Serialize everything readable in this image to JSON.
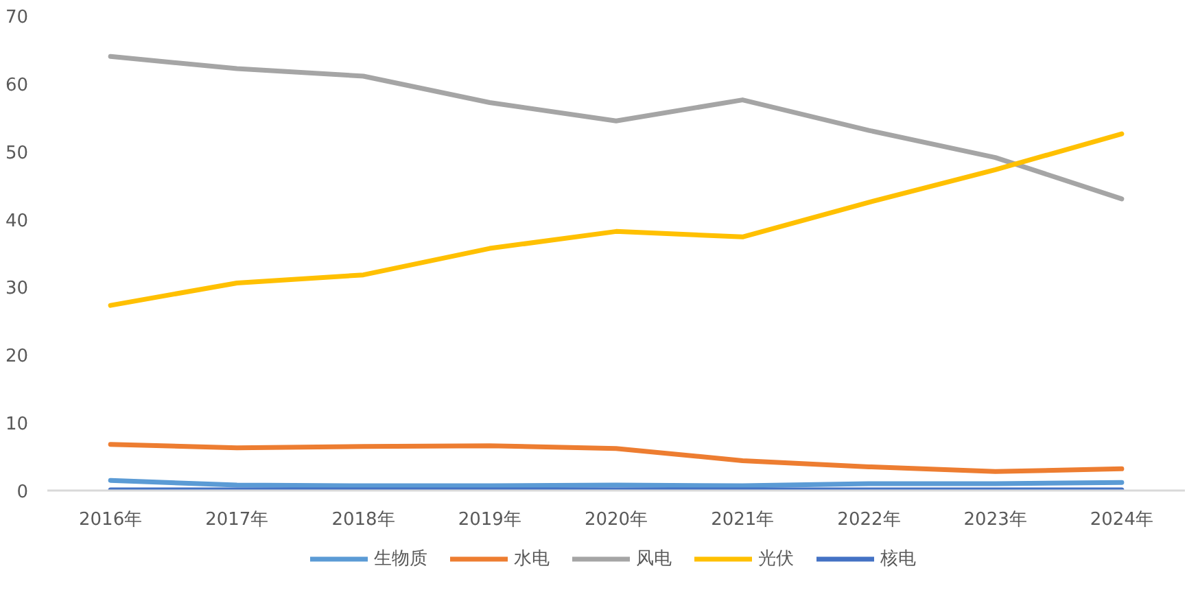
{
  "chart_data": {
    "type": "line",
    "categories": [
      "2016年",
      "2017年",
      "2018年",
      "2019年",
      "2020年",
      "2021年",
      "2022年",
      "2023年",
      "2024年"
    ],
    "series": [
      {
        "name": "生物质",
        "color": "#5b9bd5",
        "values": [
          1.5,
          0.8,
          0.7,
          0.7,
          0.8,
          0.7,
          1.0,
          1.0,
          1.2
        ]
      },
      {
        "name": "水电",
        "color": "#ed7d31",
        "values": [
          6.8,
          6.3,
          6.5,
          6.6,
          6.2,
          4.4,
          3.5,
          2.8,
          3.2
        ]
      },
      {
        "name": "风电",
        "color": "#a5a5a5",
        "values": [
          64.0,
          62.2,
          61.1,
          57.2,
          54.5,
          57.6,
          53.1,
          49.1,
          43.0
        ]
      },
      {
        "name": "光伏",
        "color": "#ffc000",
        "values": [
          27.3,
          30.6,
          31.8,
          35.7,
          38.2,
          37.4,
          42.5,
          47.3,
          52.6
        ]
      },
      {
        "name": "核电",
        "color": "#4472c4",
        "values": [
          0.1,
          0.1,
          0.1,
          0.1,
          0.1,
          0.1,
          0.1,
          0.1,
          0.1
        ]
      }
    ],
    "ylim": [
      0,
      70
    ],
    "yticks": [
      0,
      10,
      20,
      30,
      40,
      50,
      60,
      70
    ],
    "legend": "bottom",
    "line_style": "solid",
    "marker": "none"
  }
}
